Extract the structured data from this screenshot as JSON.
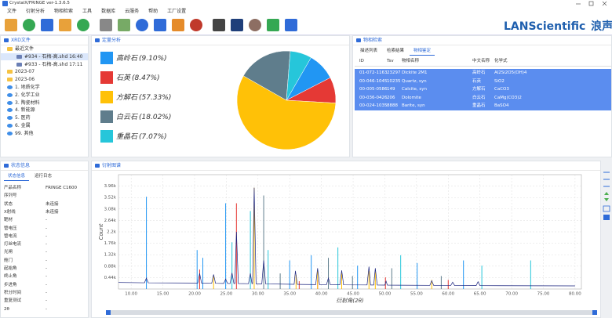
{
  "window": {
    "title": "CrystalX/FRINGE ver-1.3.6.5"
  },
  "menu": [
    "文件",
    "衍射分析",
    "物相检索",
    "工具",
    "数据库",
    "云服务",
    "帮助",
    "工厂设置"
  ],
  "logo": {
    "brand": "LANScientific",
    "cn": "浪声"
  },
  "panels": {
    "xrd_files": {
      "title": "XRD文件",
      "tree": {
        "recent": {
          "label": "最近文件",
          "files": [
            "#934 - 石梅-高.shd 16:40",
            "#933 - 石梅-高.shd 17:11"
          ]
        },
        "folders": [
          "2023-07",
          "2023-06"
        ],
        "categories": [
          "1. 地质化学",
          "2. 化学工业",
          "3. 陶瓷材料",
          "4. 新能源",
          "5. 医药",
          "6. 金属",
          "99. 其他"
        ]
      }
    },
    "phase": {
      "title": "物相检索",
      "tabs": [
        "描述列表",
        "检索结果",
        "物相鉴定"
      ],
      "columns": [
        "ID",
        "Tsv",
        "物相名称",
        "中文名称",
        "化学式"
      ],
      "rows": [
        [
          "01-072-1163",
          "23297",
          "Dickite 2M1",
          "高岭石",
          "Al2Si2O5(OH)4"
        ],
        [
          "00-046-1045",
          "10235",
          "Quartz, syn",
          "石英",
          "SiO2"
        ],
        [
          "00-005-0586",
          "149",
          "Calcite, syn",
          "方解石",
          "CaCO3"
        ],
        [
          "00-036-0426",
          "206",
          "Dolomite",
          "白云石",
          "CaMg(CO3)2"
        ],
        [
          "00-024-1035",
          "8888",
          "Barite, syn",
          "重晶石",
          "BaSO4"
        ]
      ]
    },
    "status": {
      "title": "状态信息",
      "tabs": [
        "状态信息",
        "运行日志"
      ],
      "rows": [
        [
          "产品名称",
          "FRINGE C1600"
        ],
        [
          "序列号",
          ""
        ],
        [
          "状态",
          "未连接"
        ],
        [
          "X射线",
          "未连接"
        ],
        [
          "靶材",
          "-"
        ],
        [
          "管电压",
          "-"
        ],
        [
          "管电流",
          "-"
        ],
        [
          "灯丝电流",
          "-"
        ],
        [
          "光闸",
          "-"
        ],
        [
          "舱门",
          "-"
        ],
        [
          "起始角",
          "-"
        ],
        [
          "终止角",
          "-"
        ],
        [
          "步进角",
          "-"
        ],
        [
          "积分时间",
          "-"
        ],
        [
          "重复测试",
          "-"
        ],
        [
          "2θ",
          "-"
        ]
      ]
    }
  },
  "chart_data": [
    {
      "type": "pie",
      "title": "定量分析",
      "categories": [
        "高岭石",
        "石英",
        "方解石",
        "白云石",
        "重晶石"
      ],
      "values": [
        9.1,
        8.47,
        57.33,
        18.02,
        7.07
      ],
      "value_labels": [
        "(9.10%)",
        "(8.47%)",
        "(57.33%)",
        "(18.02%)",
        "(7.07%)"
      ],
      "colors": [
        "#2196f3",
        "#e53935",
        "#ffc107",
        "#5f7d8c",
        "#26c6da"
      ]
    },
    {
      "type": "line",
      "title": "衍射图谱",
      "xlabel": "衍射角(2θ)",
      "ylabel": "Count",
      "xlim": [
        8,
        81
      ],
      "ylim": [
        0,
        4400
      ],
      "xticks": [
        {
          "value": 10,
          "label": "10.00"
        },
        {
          "value": 15,
          "label": "15.00"
        },
        {
          "value": 20,
          "label": "20.00"
        },
        {
          "value": 25,
          "label": "25.00"
        },
        {
          "value": 30,
          "label": "30.00"
        },
        {
          "value": 35,
          "label": "35.00"
        },
        {
          "value": 40,
          "label": "40.00"
        },
        {
          "value": 45,
          "label": "45.00"
        },
        {
          "value": 50,
          "label": "50.00"
        },
        {
          "value": 55,
          "label": "55.00"
        },
        {
          "value": 60,
          "label": "60.00"
        },
        {
          "value": 65,
          "label": "65.00"
        },
        {
          "value": 70,
          "label": "70.00"
        },
        {
          "value": 75,
          "label": "75.00"
        },
        {
          "value": 80,
          "label": "80.00"
        }
      ],
      "yticks": [
        {
          "value": 440,
          "label": "0.44k"
        },
        {
          "value": 880,
          "label": "0.88k"
        },
        {
          "value": 1320,
          "label": "1.32k"
        },
        {
          "value": 1760,
          "label": "1.76k"
        },
        {
          "value": 2200,
          "label": "2.2k"
        },
        {
          "value": 2640,
          "label": "2.64k"
        },
        {
          "value": 3080,
          "label": "3.08k"
        },
        {
          "value": 3520,
          "label": "3.52k"
        },
        {
          "value": 3960,
          "label": "3.96k"
        }
      ],
      "grid": true,
      "series": [
        {
          "color": "#1a237e",
          "x": [
            8,
            12.1,
            12.4,
            12.7,
            20.5,
            20.8,
            21.1,
            22.7,
            23.0,
            23.3,
            24.6,
            24.9,
            25.2,
            25.6,
            25.9,
            26.2,
            26.35,
            26.6,
            26.9,
            28.5,
            28.8,
            29.05,
            29.15,
            29.4,
            29.7,
            30.6,
            30.9,
            31.2,
            35.7,
            35.9,
            36.2,
            39.1,
            39.4,
            39.7,
            40.8,
            41.1,
            41.4,
            42.9,
            43.2,
            43.5,
            47.2,
            47.5,
            47.75,
            48.25,
            48.5,
            48.8,
            50.0,
            50.2,
            50.4,
            57.1,
            57.4,
            57.7,
            60.4,
            60.7,
            61.0,
            64.4,
            64.7,
            65.0,
            80
          ],
          "values": [
            250,
            240,
            420,
            240,
            230,
            600,
            225,
            220,
            560,
            220,
            215,
            380,
            215,
            212,
            620,
            212,
            212,
            2200,
            210,
            205,
            600,
            205,
            205,
            3900,
            200,
            200,
            1100,
            198,
            180,
            700,
            178,
            170,
            800,
            168,
            168,
            420,
            165,
            162,
            720,
            160,
            157,
            860,
            155,
            155,
            800,
            153,
            150,
            300,
            150,
            142,
            320,
            140,
            138,
            260,
            136,
            132,
            280,
            130,
            120
          ]
        },
        {
          "color": "#2196f3",
          "style": "stick",
          "x": [
            12.4,
            20.4,
            21.3,
            24.9,
            35.0,
            38.4,
            45.7,
            55.1,
            62.4
          ],
          "values": [
            3550,
            1500,
            1200,
            3300,
            1100,
            1300,
            900,
            1000,
            1100
          ]
        },
        {
          "color": "#e53935",
          "style": "stick",
          "x": [
            20.8,
            26.6,
            36.5,
            39.4,
            50.1,
            60.0
          ],
          "values": [
            750,
            3300,
            300,
            350,
            450,
            350
          ]
        },
        {
          "color": "#ffc107",
          "style": "stick",
          "x": [
            23.0,
            29.4,
            36.0,
            39.4,
            43.2,
            47.5,
            48.5,
            57.4
          ],
          "values": [
            500,
            3900,
            550,
            700,
            600,
            700,
            650,
            350
          ]
        },
        {
          "color": "#5f7d8c",
          "style": "stick",
          "x": [
            30.9,
            33.5,
            41.1,
            44.9,
            51.1,
            58.9
          ],
          "values": [
            3600,
            600,
            1200,
            500,
            800,
            500
          ]
        },
        {
          "color": "#26c6da",
          "style": "stick",
          "x": [
            25.9,
            28.8,
            31.6,
            42.6,
            52.5,
            65.3,
            73.0
          ],
          "values": [
            1800,
            3000,
            1500,
            1600,
            1300,
            900,
            1100
          ]
        }
      ]
    }
  ]
}
